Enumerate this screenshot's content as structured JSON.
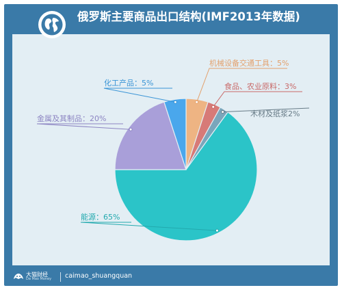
{
  "header": {
    "title": "俄罗斯主要商品出口结构(IMF2013年数据)",
    "globe_icon": "globe-icon"
  },
  "footer": {
    "brand": "大猫财经",
    "brand_sub": "Da Mao Money",
    "handle": "caimao_shuangquan"
  },
  "colors": {
    "frame": "#3a7aa8",
    "panel": "#e3eef4"
  },
  "chart_data": {
    "type": "pie",
    "title": "俄罗斯主要商品出口结构(IMF2013年数据)",
    "slices": [
      {
        "label": "机械设备交通工具：5%",
        "value": 5,
        "color": "#eeb483",
        "label_color": "#e3a06c"
      },
      {
        "label": "食品、农业原料：3%",
        "value": 3,
        "color": "#d77a77",
        "label_color": "#c86867"
      },
      {
        "label": "木材及纸浆2%",
        "value": 2,
        "color": "#7aa6bb",
        "label_color": "#667a86"
      },
      {
        "label": "能源：65%",
        "value": 65,
        "color": "#2bc4c8",
        "label_color": "#22a9ae"
      },
      {
        "label": "金属及其制品：20%",
        "value": 20,
        "color": "#a99fd9",
        "label_color": "#8c84c2"
      },
      {
        "label": "化工产品：5%",
        "value": 5,
        "color": "#4aa7ec",
        "label_color": "#3994d6"
      }
    ]
  }
}
